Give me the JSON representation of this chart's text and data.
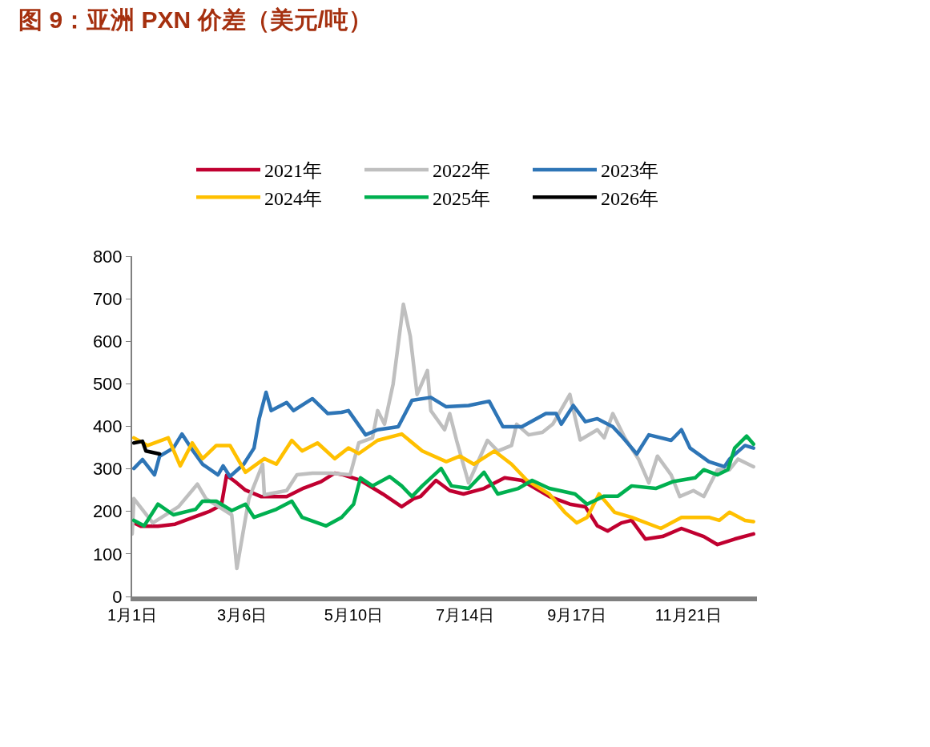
{
  "chart_data": {
    "type": "line",
    "title": "图 9：亚洲 PXN 价差（美元/吨）",
    "xlim": [
      "--01-01",
      "--12-31"
    ],
    "xticks": [
      {
        "value": "--01-01",
        "label": "1月1日"
      },
      {
        "value": "--03-06",
        "label": "3月6日"
      },
      {
        "value": "--05-10",
        "label": "5月10日"
      },
      {
        "value": "--07-14",
        "label": "7月14日"
      },
      {
        "value": "--09-17",
        "label": "9月17日"
      },
      {
        "value": "--11-21",
        "label": "11月21日"
      }
    ],
    "ylim": [
      0,
      800
    ],
    "yticks": [
      0,
      100,
      200,
      300,
      400,
      500,
      600,
      700,
      800
    ],
    "legend": "top",
    "marker": "none",
    "line_style": "solid",
    "series": [
      {
        "name": "2021年",
        "color": "#c00030",
        "x": [
          "--01-01",
          "--01-06",
          "--01-16",
          "--01-26",
          "--02-05",
          "--02-15",
          "--02-22",
          "--02-25",
          "--03-02",
          "--03-08",
          "--03-17",
          "--04-01",
          "--04-11",
          "--04-21",
          "--04-29",
          "--05-04",
          "--05-14",
          "--05-27",
          "--06-07",
          "--06-14",
          "--06-18",
          "--06-27",
          "--07-05",
          "--07-13",
          "--07-25",
          "--08-06",
          "--08-16",
          "--09-01",
          "--09-13",
          "--09-22",
          "--09-29",
          "--10-05",
          "--10-13",
          "--10-19",
          "--10-27",
          "--11-06",
          "--11-17",
          "--11-30",
          "--12-08",
          "--12-18",
          "--12-29"
        ],
        "values": [
          175,
          165,
          165,
          170,
          185,
          200,
          215,
          285,
          270,
          250,
          235,
          235,
          255,
          270,
          290,
          286,
          273,
          241,
          211,
          230,
          235,
          273,
          249,
          241,
          254,
          279,
          273,
          235,
          217,
          211,
          166,
          154,
          173,
          179,
          135,
          141,
          160,
          141,
          122,
          135,
          147
        ]
      },
      {
        "name": "2022年",
        "color": "#bfbfbf",
        "x": [
          "--01-01",
          "--01-02",
          "--01-13",
          "--01-28",
          "--02-08",
          "--02-13",
          "--02-28",
          "--03-03",
          "--03-07",
          "--03-10",
          "--03-18",
          "--03-19",
          "--04-01",
          "--04-07",
          "--04-16",
          "--04-27",
          "--05-08",
          "--05-13",
          "--05-21",
          "--05-24",
          "--05-28",
          "--06-02",
          "--06-08",
          "--06-12",
          "--06-16",
          "--06-22",
          "--06-24",
          "--07-02",
          "--07-05",
          "--07-09",
          "--07-16",
          "--07-27",
          "--08-02",
          "--08-10",
          "--08-13",
          "--08-20",
          "--08-28",
          "--09-03",
          "--09-13",
          "--09-19",
          "--09-29",
          "--10-03",
          "--10-08",
          "--10-15",
          "--10-23",
          "--10-29",
          "--11-03",
          "--11-11",
          "--11-16",
          "--11-24",
          "--11-30",
          "--12-08",
          "--12-15",
          "--12-20",
          "--12-29"
        ],
        "values": [
          147,
          230,
          173,
          211,
          264,
          230,
          192,
          66,
          160,
          230,
          311,
          239,
          249,
          286,
          290,
          290,
          286,
          361,
          373,
          437,
          405,
          499,
          687,
          612,
          475,
          531,
          437,
          392,
          430,
          367,
          267,
          367,
          342,
          355,
          405,
          380,
          386,
          405,
          475,
          368,
          392,
          373,
          430,
          373,
          323,
          267,
          330,
          286,
          235,
          249,
          235,
          298,
          298,
          323,
          305
        ]
      },
      {
        "name": "2023年",
        "color": "#2e75b6",
        "x": [
          "--01-02",
          "--01-07",
          "--01-14",
          "--01-17",
          "--01-25",
          "--01-30",
          "--02-05",
          "--02-11",
          "--02-20",
          "--02-23",
          "--02-27",
          "--03-07",
          "--03-13",
          "--03-16",
          "--03-20",
          "--03-23",
          "--04-01",
          "--04-05",
          "--04-16",
          "--04-25",
          "--05-03",
          "--05-07",
          "--05-17",
          "--05-24",
          "--06-05",
          "--06-13",
          "--06-24",
          "--07-03",
          "--07-16",
          "--07-28",
          "--08-05",
          "--08-16",
          "--08-30",
          "--09-05",
          "--09-08",
          "--09-15",
          "--09-22",
          "--09-29",
          "--10-08",
          "--10-14",
          "--10-22",
          "--10-29",
          "--11-11",
          "--11-17",
          "--11-22",
          "--12-03",
          "--12-12",
          "--12-15",
          "--12-24",
          "--12-29"
        ],
        "values": [
          301,
          322,
          286,
          330,
          349,
          382,
          345,
          311,
          286,
          307,
          282,
          311,
          349,
          418,
          480,
          437,
          456,
          437,
          465,
          430,
          433,
          437,
          380,
          392,
          399,
          461,
          468,
          446,
          449,
          459,
          399,
          399,
          430,
          430,
          405,
          449,
          411,
          418,
          399,
          373,
          335,
          380,
          367,
          392,
          349,
          317,
          305,
          323,
          355,
          349
        ]
      },
      {
        "name": "2024年",
        "color": "#ffc000",
        "x": [
          "--01-02",
          "--01-10",
          "--01-22",
          "--01-29",
          "--02-05",
          "--02-11",
          "--02-19",
          "--02-27",
          "--03-08",
          "--03-19",
          "--03-26",
          "--04-04",
          "--04-10",
          "--04-19",
          "--04-29",
          "--05-07",
          "--05-13",
          "--05-24",
          "--06-07",
          "--06-19",
          "--07-03",
          "--07-11",
          "--07-19",
          "--07-31",
          "--08-10",
          "--08-19",
          "--09-01",
          "--09-10",
          "--09-17",
          "--09-23",
          "--09-30",
          "--10-09",
          "--10-19",
          "--11-05",
          "--11-17",
          "--12-03",
          "--12-09",
          "--12-15",
          "--12-24",
          "--12-29"
        ],
        "values": [
          373,
          355,
          373,
          307,
          361,
          324,
          355,
          355,
          292,
          324,
          311,
          367,
          342,
          361,
          324,
          349,
          336,
          367,
          382,
          342,
          317,
          330,
          311,
          342,
          311,
          273,
          241,
          198,
          173,
          186,
          241,
          198,
          186,
          160,
          186,
          186,
          179,
          198,
          179,
          176
        ]
      },
      {
        "name": "2025年",
        "color": "#00b050",
        "x": [
          "--01-02",
          "--01-08",
          "--01-16",
          "--01-25",
          "--02-07",
          "--02-11",
          "--02-19",
          "--02-28",
          "--03-08",
          "--03-13",
          "--03-26",
          "--04-04",
          "--04-10",
          "--04-24",
          "--05-03",
          "--05-10",
          "--05-14",
          "--05-21",
          "--05-31",
          "--06-07",
          "--06-13",
          "--06-19",
          "--06-30",
          "--07-06",
          "--07-16",
          "--07-25",
          "--08-02",
          "--08-14",
          "--08-22",
          "--09-01",
          "--09-07",
          "--09-16",
          "--09-23",
          "--10-03",
          "--10-11",
          "--10-19",
          "--11-02",
          "--11-12",
          "--11-25",
          "--11-30",
          "--12-08",
          "--12-14",
          "--12-18",
          "--12-25",
          "--12-29"
        ],
        "values": [
          179,
          166,
          217,
          192,
          205,
          224,
          224,
          202,
          217,
          186,
          205,
          224,
          186,
          166,
          186,
          217,
          279,
          260,
          282,
          260,
          235,
          260,
          301,
          260,
          254,
          292,
          241,
          254,
          273,
          254,
          249,
          241,
          217,
          236,
          236,
          260,
          254,
          270,
          279,
          298,
          286,
          298,
          349,
          377,
          358
        ]
      },
      {
        "name": "2026年",
        "color": "#000000",
        "x": [
          "--01-02",
          "--01-07",
          "--01-09",
          "--01-17"
        ],
        "values": [
          361,
          365,
          342,
          335
        ]
      }
    ]
  }
}
